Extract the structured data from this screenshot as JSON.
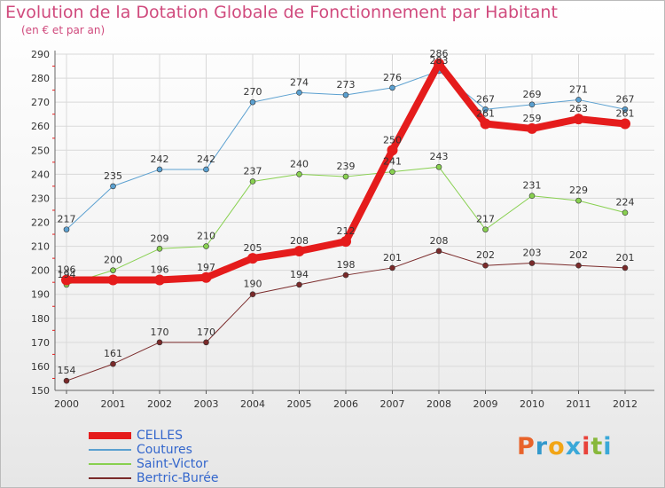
{
  "title": "Evolution de la Dotation Globale de Fonctionnement par Habitant",
  "subtitle": "(en € et par an)",
  "logo": {
    "text": "Proxiti",
    "colors": [
      "#e8632a",
      "#3399cc",
      "#f2a516",
      "#3aa8d8",
      "#e8423a",
      "#88b83c",
      "#3aa8d8"
    ]
  },
  "chart_data": {
    "type": "line",
    "title": "Evolution de la Dotation Globale de Fonctionnement par Habitant",
    "xlabel": "",
    "ylabel": "",
    "x": [
      "2000",
      "2001",
      "2002",
      "2003",
      "2004",
      "2005",
      "2006",
      "2007",
      "2008",
      "2009",
      "2010",
      "2011",
      "2012"
    ],
    "ylim": [
      150,
      290
    ],
    "yticks": [
      150,
      160,
      170,
      180,
      190,
      200,
      210,
      220,
      230,
      240,
      250,
      260,
      270,
      280,
      290
    ],
    "grid": true,
    "legend": "bottom-left",
    "series": [
      {
        "name": "CELLES",
        "color": "#e51c1c",
        "width": 8,
        "values": [
          196,
          196,
          196,
          197,
          205,
          208,
          212,
          250,
          286,
          261,
          259,
          263,
          261
        ],
        "labels": [
          "196",
          "",
          "196",
          "197",
          "205",
          "208",
          "212",
          "250",
          "286",
          "261",
          "259",
          "263",
          "261"
        ]
      },
      {
        "name": "Coutures",
        "color": "#5ba0d0",
        "width": 1,
        "values": [
          217,
          235,
          242,
          242,
          270,
          274,
          273,
          276,
          283,
          267,
          269,
          271,
          267
        ],
        "labels": [
          "217",
          "235",
          "242",
          "242",
          "270",
          "274",
          "273",
          "276",
          "283",
          "267",
          "269",
          "271",
          "267"
        ]
      },
      {
        "name": "Saint-Victor",
        "color": "#88d050",
        "width": 1,
        "values": [
          194,
          200,
          209,
          210,
          237,
          240,
          239,
          241,
          243,
          217,
          231,
          229,
          224
        ],
        "labels": [
          "194",
          "200",
          "209",
          "210",
          "237",
          "240",
          "239",
          "241",
          "243",
          "217",
          "231",
          "229",
          "224"
        ]
      },
      {
        "name": "Bertric-Burée",
        "color": "#7a2a2a",
        "width": 1,
        "values": [
          154,
          161,
          170,
          170,
          190,
          194,
          198,
          201,
          208,
          202,
          203,
          202,
          201
        ],
        "labels": [
          "154",
          "161",
          "170",
          "170",
          "190",
          "194",
          "198",
          "201",
          "208",
          "202",
          "203",
          "202",
          "201"
        ]
      }
    ]
  }
}
